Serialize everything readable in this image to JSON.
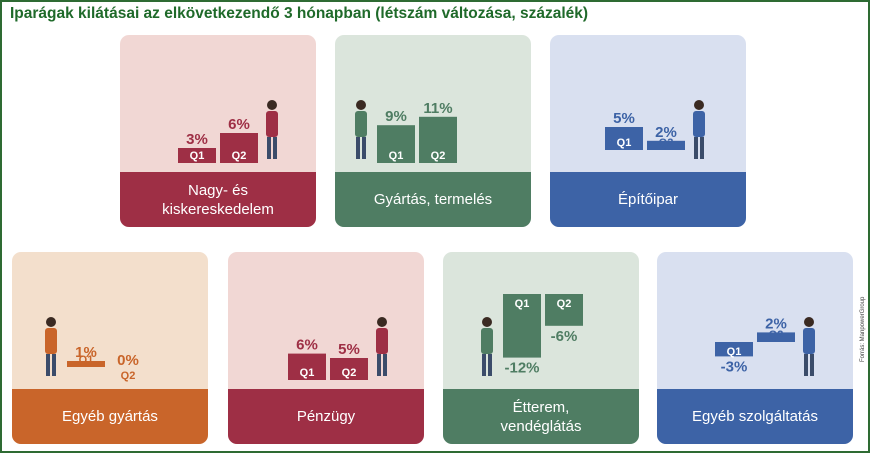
{
  "title": "Iparágak kilátásai az elkövetkezendő 3 hónapban (létszám változása, százalék)",
  "source": "Forrás: ManpowerGroup",
  "chart_data": [
    {
      "type": "bar",
      "name": "Nagy- és kiskereskedelem",
      "categories": [
        "Q1",
        "Q2"
      ],
      "values": [
        3,
        6
      ],
      "value_labels": [
        "3%",
        "6%"
      ],
      "color": "#9e2f45",
      "bg": "#f1d7d4"
    },
    {
      "type": "bar",
      "name": "Gyártás, termelés",
      "categories": [
        "Q1",
        "Q2"
      ],
      "values": [
        9,
        11
      ],
      "value_labels": [
        "9%",
        "11%"
      ],
      "color": "#4f7d63",
      "bg": "#dbe5dc"
    },
    {
      "type": "bar",
      "name": "Építőipar",
      "categories": [
        "Q1",
        "Q2"
      ],
      "values": [
        5,
        2
      ],
      "value_labels": [
        "5%",
        "2%"
      ],
      "color": "#3d63a6",
      "bg": "#d9e0f0"
    },
    {
      "type": "bar",
      "name": "Egyéb gyártás",
      "categories": [
        "Q1",
        "Q2"
      ],
      "values": [
        1,
        0
      ],
      "value_labels": [
        "1%",
        "0%"
      ],
      "color": "#c9652a",
      "bg": "#f3dfcc"
    },
    {
      "type": "bar",
      "name": "Pénzügy",
      "categories": [
        "Q1",
        "Q2"
      ],
      "values": [
        6,
        5
      ],
      "value_labels": [
        "6%",
        "5%"
      ],
      "color": "#9e2f45",
      "bg": "#f1d7d4"
    },
    {
      "type": "bar",
      "name": "Étterem, vendéglátás",
      "categories": [
        "Q1",
        "Q2"
      ],
      "values": [
        -12,
        -6
      ],
      "value_labels": [
        "-12%",
        "-6%"
      ],
      "color": "#4f7d63",
      "bg": "#dbe5dc"
    },
    {
      "type": "bar",
      "name": "Egyéb szolgáltatás",
      "categories": [
        "Q1",
        "Q2"
      ],
      "values": [
        -3,
        2
      ],
      "value_labels": [
        "-3%",
        "2%"
      ],
      "color": "#3d63a6",
      "bg": "#d9e0f0"
    }
  ]
}
